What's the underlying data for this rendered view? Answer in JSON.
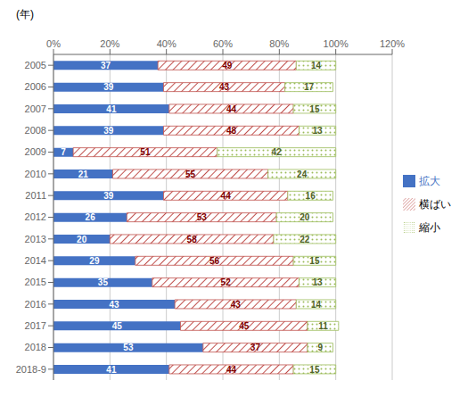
{
  "chart_data": {
    "type": "bar",
    "orientation": "horizontal",
    "stacked": true,
    "data_labels": true,
    "grid": true,
    "legend": "right",
    "ylabel": "(年)",
    "categories": [
      "2005",
      "2006",
      "2007",
      "2008",
      "2009",
      "2010",
      "2011",
      "2012",
      "2013",
      "2014",
      "2015",
      "2016",
      "2017",
      "2018",
      "2018-9"
    ],
    "series": [
      {
        "name": "拡大",
        "color": "#4472C4",
        "values": [
          37,
          39,
          41,
          39,
          7,
          21,
          39,
          26,
          20,
          29,
          35,
          43,
          45,
          53,
          41
        ]
      },
      {
        "name": "横ばい",
        "color": "#C0504D",
        "values": [
          49,
          43,
          44,
          48,
          51,
          55,
          44,
          53,
          58,
          56,
          52,
          43,
          45,
          37,
          44
        ]
      },
      {
        "name": "縮小",
        "color": "#9BBB59",
        "values": [
          14,
          17,
          15,
          13,
          42,
          24,
          16,
          20,
          22,
          15,
          13,
          14,
          11,
          9,
          15
        ]
      }
    ],
    "xlim": [
      0,
      120
    ],
    "xticks": [
      {
        "value": 0,
        "label": "0%"
      },
      {
        "value": 20,
        "label": "20%"
      },
      {
        "value": 40,
        "label": "40%"
      },
      {
        "value": 60,
        "label": "60%"
      },
      {
        "value": 80,
        "label": "80%"
      },
      {
        "value": 100,
        "label": "100%"
      },
      {
        "value": 120,
        "label": "120%"
      }
    ]
  }
}
